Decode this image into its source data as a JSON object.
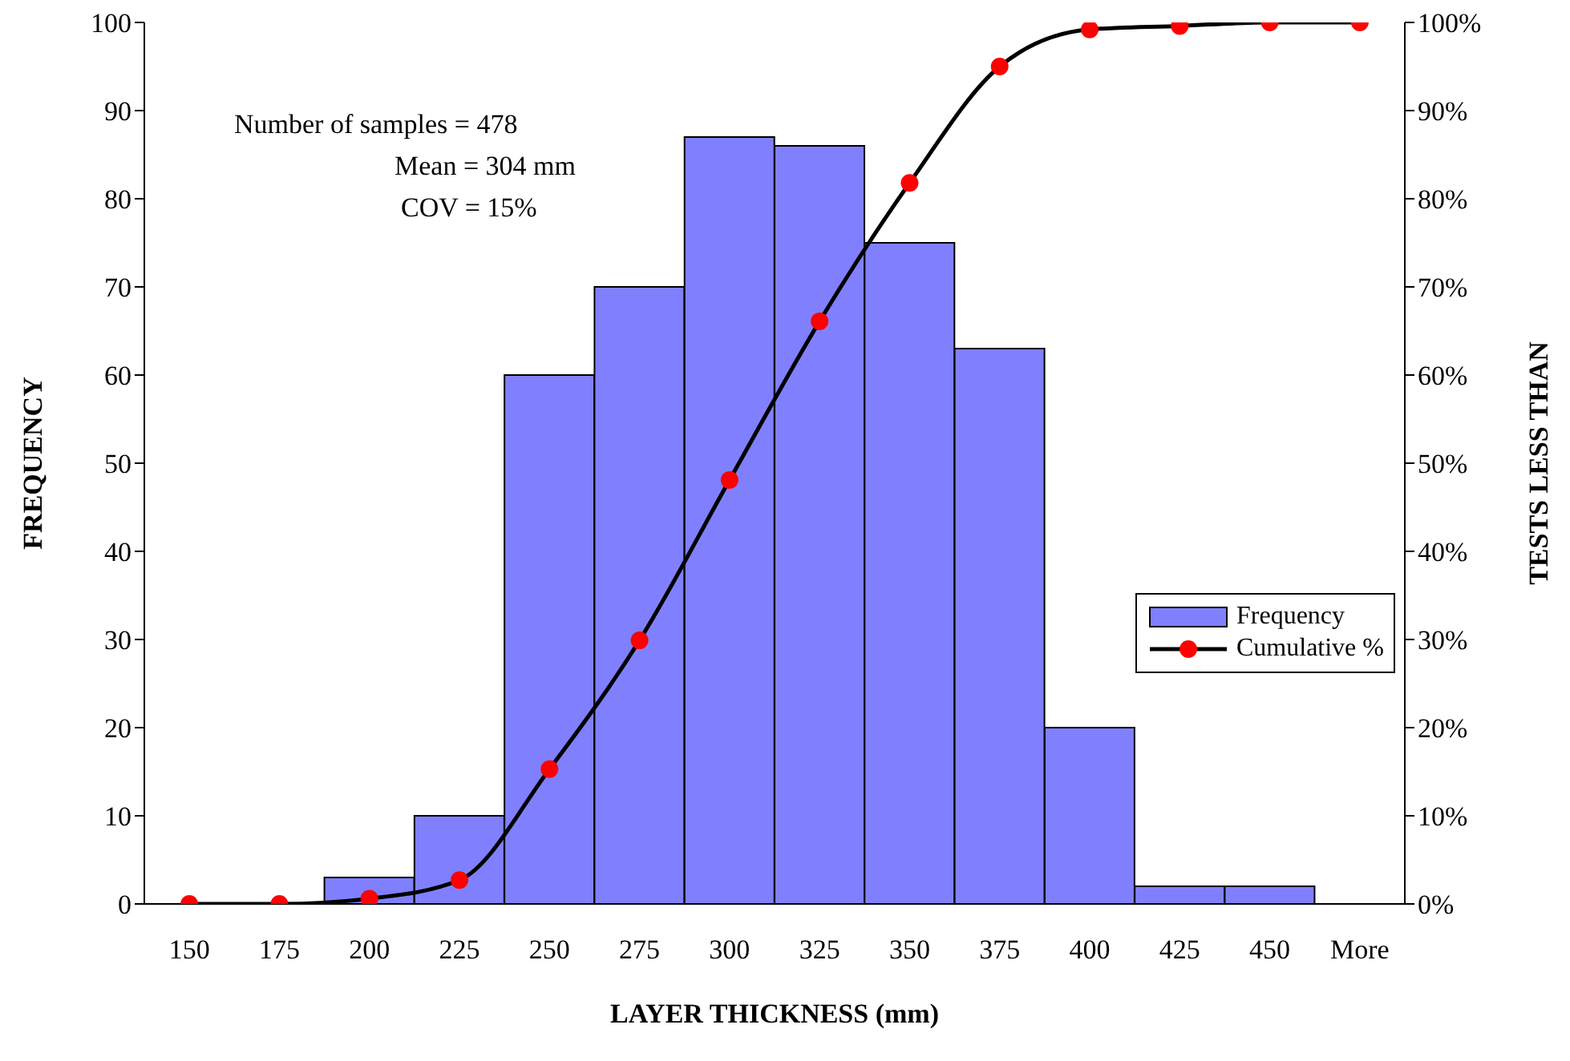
{
  "chart_data": {
    "type": "bar",
    "xlabel": "LAYER THICKNESS (mm)",
    "ylabel": "FREQUENCY",
    "y2label": "TESTS LESS THAN",
    "categories": [
      "150",
      "175",
      "200",
      "225",
      "250",
      "275",
      "300",
      "325",
      "350",
      "375",
      "400",
      "425",
      "450",
      "More"
    ],
    "series": [
      {
        "name": "Frequency",
        "color": "#8080ff",
        "values": [
          0,
          0,
          3,
          10,
          60,
          70,
          87,
          86,
          75,
          63,
          20,
          2,
          2,
          0
        ]
      },
      {
        "name": "Cumulative %",
        "type": "line",
        "axis": "y2",
        "color": "#000000",
        "colors": [
          "#ff0000",
          "#ff0000",
          "#ff0000",
          "#ff0000",
          "#ff0000",
          "#ff0000",
          "#ff0000",
          "#ff0000",
          "#ff0000",
          "#ff0000",
          "#ff0000",
          "#ff0000",
          "#ff0000",
          "#ff0000"
        ],
        "values": [
          0,
          0,
          0.6,
          2.7,
          15.3,
          29.9,
          48.1,
          66.1,
          81.8,
          95.0,
          99.2,
          99.6,
          100,
          100
        ]
      }
    ],
    "ylim": [
      0,
      100
    ],
    "yticks": [
      0,
      10,
      20,
      30,
      40,
      50,
      60,
      70,
      80,
      90,
      100
    ],
    "y2lim": [
      0,
      100
    ],
    "y2ticks": [
      {
        "value": 0,
        "label": "0%"
      },
      {
        "value": 10,
        "label": "10%"
      },
      {
        "value": 20,
        "label": "20%"
      },
      {
        "value": 30,
        "label": "30%"
      },
      {
        "value": 40,
        "label": "40%"
      },
      {
        "value": 50,
        "label": "50%"
      },
      {
        "value": 60,
        "label": "60%"
      },
      {
        "value": 70,
        "label": "70%"
      },
      {
        "value": 80,
        "label": "80%"
      },
      {
        "value": 90,
        "label": "90%"
      },
      {
        "value": 100,
        "label": "100%"
      }
    ],
    "marker": "circle",
    "legend": "right",
    "annotations": [
      "Number of samples = 478",
      "Mean = 304 mm",
      "COV = 15%"
    ]
  }
}
